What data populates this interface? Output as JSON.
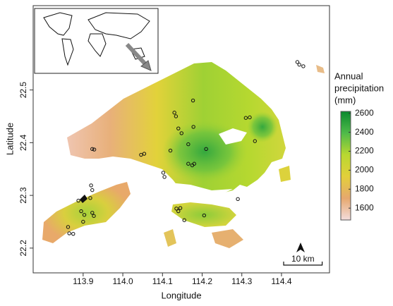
{
  "chart_data": {
    "type": "map",
    "x_label": "Longitude",
    "y_label": "Latitude",
    "xlim": [
      113.774,
      114.521
    ],
    "ylim": [
      22.153,
      22.66
    ],
    "xticks": [
      113.9,
      {
        "value": 114.0,
        "label": "114.0"
      },
      114.1,
      114.2,
      114.3,
      114.4
    ],
    "yticks": [
      22.2,
      22.3,
      22.4,
      22.5
    ],
    "colorbar": {
      "title_lines": [
        "Annual",
        "precipitation",
        "(mm)"
      ],
      "clim": [
        1475,
        2620
      ],
      "ticks": [
        1600,
        1800,
        2000,
        2200,
        2400,
        2600
      ],
      "colors": [
        "#f3dcdc",
        "#e6a86e",
        "#e3cf3a",
        "#b9d830",
        "#4fba4a",
        "#0a8a2e"
      ]
    },
    "scale_bar": {
      "label": "10 km",
      "length_km": 10
    },
    "stations": {
      "lon": [
        113.923,
        113.928,
        113.92,
        113.923,
        113.918,
        113.888,
        113.895,
        113.903,
        113.9,
        113.923,
        113.927,
        113.862,
        113.865,
        113.875,
        114.046,
        114.054,
        114.13,
        114.134,
        114.14,
        114.178,
        114.177,
        114.12,
        114.148,
        114.165,
        114.165,
        114.175,
        114.18,
        114.102,
        114.105,
        114.21,
        114.135,
        114.14,
        114.145,
        114.155,
        114.205,
        114.29,
        114.32,
        114.31,
        114.333,
        114.44,
        114.445,
        114.455
      ],
      "lat": [
        22.388,
        22.387,
        22.319,
        22.31,
        22.295,
        22.29,
        22.27,
        22.263,
        22.25,
        22.267,
        22.261,
        22.24,
        22.228,
        22.227,
        22.377,
        22.379,
        22.457,
        22.45,
        22.427,
        22.43,
        22.48,
        22.385,
        22.418,
        22.397,
        22.36,
        22.357,
        22.36,
        22.343,
        22.335,
        22.388,
        22.275,
        22.27,
        22.276,
        22.253,
        22.262,
        22.293,
        22.448,
        22.447,
        22.403,
        22.553,
        22.548,
        22.545
      ]
    }
  }
}
